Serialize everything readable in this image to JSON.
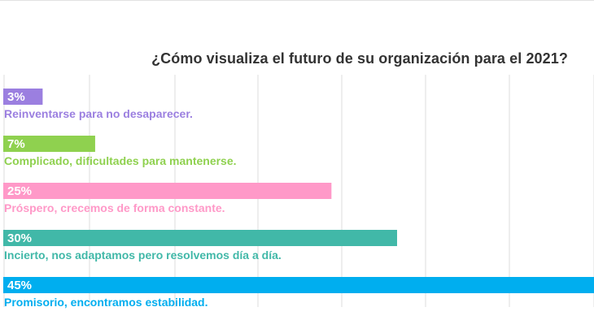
{
  "chart_data": {
    "type": "bar",
    "orientation": "horizontal",
    "title": "¿Cómo visualiza el futuro de su organización para el 2021?",
    "categories": [
      "Reinventarse para no desaparecer.",
      "Complicado, dificultades para mantenerse.",
      "Próspero, crecemos de forma constante.",
      "Incierto, nos adaptamos pero resolvemos día a día.",
      "Promisorio, encontramos estabilidad."
    ],
    "values": [
      3,
      7,
      25,
      30,
      45
    ],
    "value_labels": [
      "3%",
      "7%",
      "25%",
      "30%",
      "45%"
    ],
    "colors": [
      "#9b7fe0",
      "#8fd14f",
      "#ff99c8",
      "#41b8a8",
      "#00aeef"
    ],
    "xlim": [
      0,
      45
    ],
    "grid": true,
    "legend": "none"
  }
}
